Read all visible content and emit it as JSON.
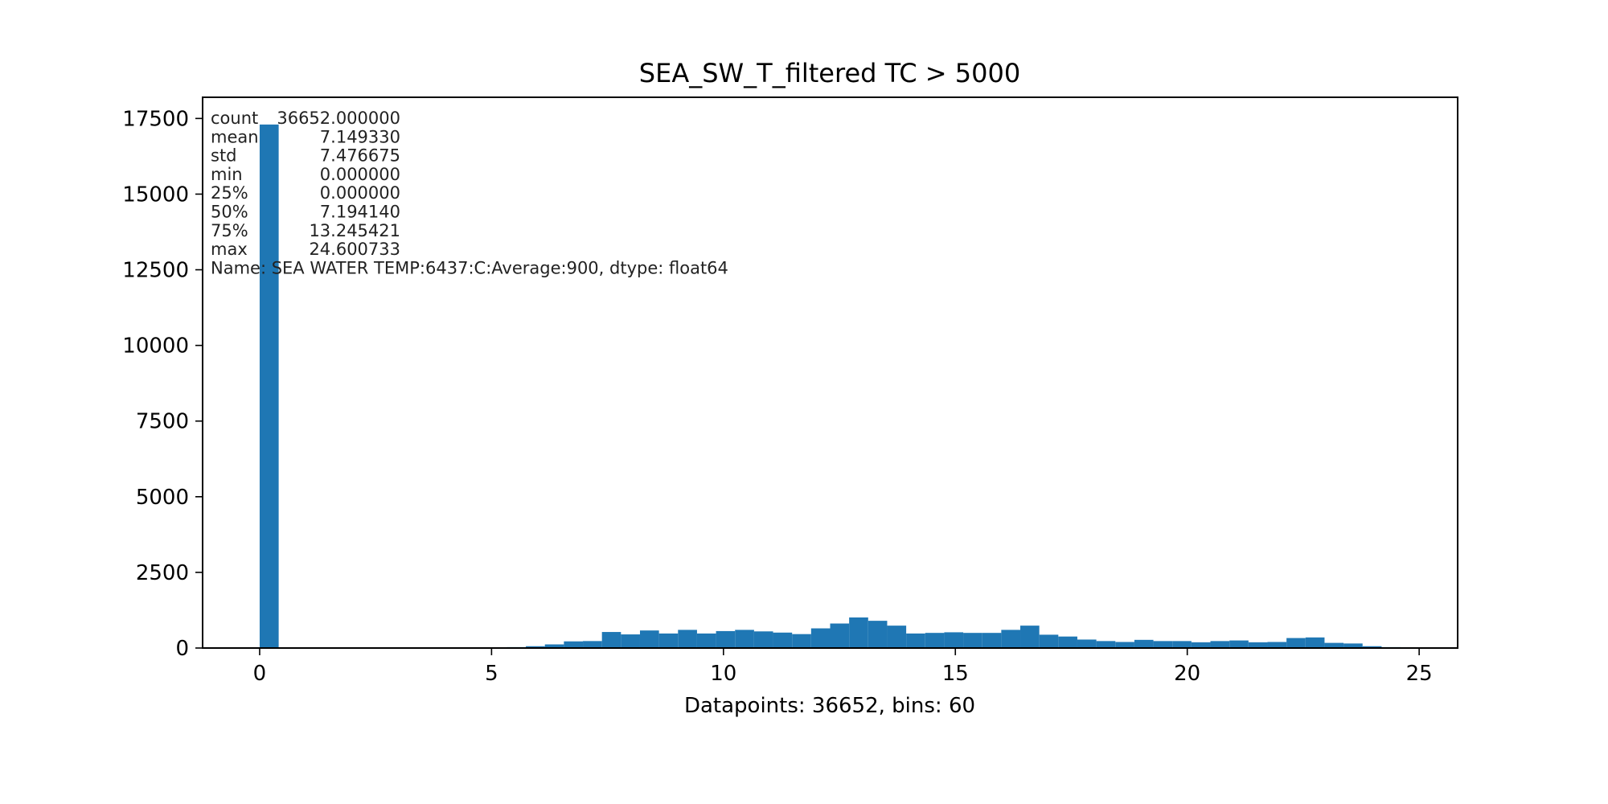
{
  "chart_data": {
    "type": "bar",
    "title": "SEA_SW_T_filtered TC > 5000",
    "xlabel": "Datapoints: 36652, bins: 60",
    "ylabel": "",
    "xlim": [
      -1.23,
      25.83
    ],
    "ylim": [
      0,
      18200
    ],
    "x_ticks": [
      0,
      5,
      10,
      15,
      20,
      25
    ],
    "x_tick_labels": [
      "0",
      "5",
      "10",
      "15",
      "20",
      "25"
    ],
    "y_ticks": [
      0,
      2500,
      5000,
      7500,
      10000,
      12500,
      15000,
      17500
    ],
    "y_tick_labels": [
      "0",
      "2500",
      "5000",
      "7500",
      "10000",
      "12500",
      "15000",
      "17500"
    ],
    "bar_color": "#1f77b4",
    "bin_min": 0.0,
    "bin_width": 0.41,
    "values": [
      17300,
      0,
      0,
      0,
      0,
      0,
      0,
      0,
      0,
      0,
      0,
      0,
      0,
      30,
      60,
      120,
      220,
      230,
      530,
      450,
      580,
      480,
      600,
      480,
      560,
      600,
      550,
      510,
      460,
      650,
      810,
      1010,
      900,
      740,
      480,
      500,
      520,
      500,
      500,
      600,
      740,
      440,
      380,
      280,
      230,
      200,
      270,
      230,
      230,
      190,
      230,
      250,
      190,
      200,
      330,
      350,
      170,
      150,
      60,
      30
    ],
    "annotation_lines": [
      {
        "key": "count",
        "value": "36652.000000"
      },
      {
        "key": "mean",
        "value": "7.149330"
      },
      {
        "key": "std",
        "value": "7.476675"
      },
      {
        "key": "min",
        "value": "0.000000"
      },
      {
        "key": "25%",
        "value": "0.000000"
      },
      {
        "key": "50%",
        "value": "7.194140"
      },
      {
        "key": "75%",
        "value": "13.245421"
      },
      {
        "key": "max",
        "value": "24.600733"
      }
    ],
    "annotation_footer": "Name: SEA WATER TEMP:6437:C:Average:900, dtype: float64"
  }
}
